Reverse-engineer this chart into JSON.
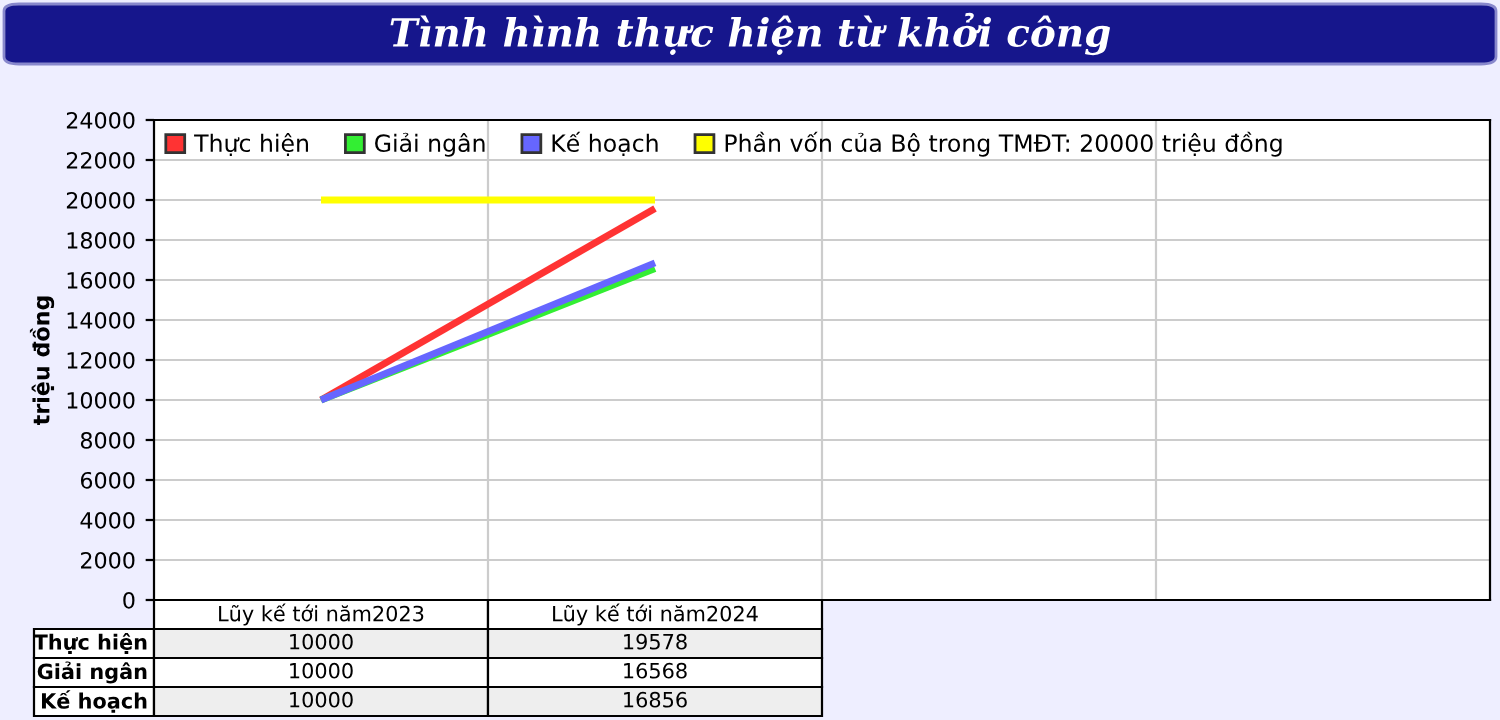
{
  "chart_data": {
    "type": "line",
    "title": "Tình hình thực hiện từ khởi công",
    "ylabel": "triệu đồng",
    "categories": [
      "Lũy kế tới năm2023",
      "Lũy kế tới năm2024",
      null,
      null
    ],
    "series": [
      {
        "name": "Thực hiện",
        "color": "#ff3333",
        "values": [
          10000,
          19578,
          null,
          null
        ],
        "value_labels": [
          "10000",
          "19578",
          null,
          null
        ]
      },
      {
        "name": "Giải ngân",
        "color": "#33ee33",
        "values": [
          10000,
          16568,
          null,
          null
        ],
        "value_labels": [
          "10000",
          "16568",
          null,
          null
        ]
      },
      {
        "name": "Kế hoạch",
        "color": "#6666ff",
        "values": [
          10000,
          16856,
          null,
          null
        ],
        "value_labels": [
          "10000",
          "16856",
          null,
          null
        ]
      },
      {
        "name": "Phần vốn của Bộ trong TMĐT: 20000 triệu đồng",
        "color": "#ffff00",
        "values": [
          20000,
          20000,
          null,
          null
        ]
      }
    ],
    "ylim": [
      0,
      24000
    ],
    "yticks": [
      0,
      2000,
      4000,
      6000,
      8000,
      10000,
      12000,
      14000,
      16000,
      18000,
      20000,
      22000,
      24000
    ],
    "grid": true,
    "legend": "top left",
    "marker": "none",
    "line_style": "solid"
  }
}
